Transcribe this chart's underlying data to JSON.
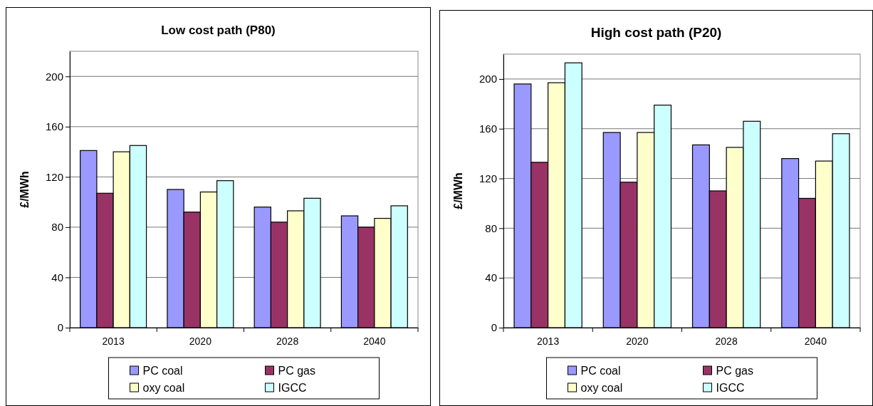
{
  "chart_data": [
    {
      "type": "bar",
      "title": "Low cost path (P80)",
      "ylabel": "£/MWh",
      "categories": [
        "2013",
        "2020",
        "2028",
        "2040"
      ],
      "ylim": [
        0,
        220
      ],
      "yticks": [
        0,
        40,
        80,
        120,
        160,
        200
      ],
      "grid": "y",
      "legend": "bottom",
      "series": [
        {
          "name": "PC coal",
          "color": "#9999ff",
          "values": [
            141,
            110,
            96,
            89
          ]
        },
        {
          "name": "PC gas",
          "color": "#993366",
          "values": [
            107,
            92,
            84,
            80
          ]
        },
        {
          "name": "oxy coal",
          "color": "#ffffcc",
          "values": [
            140,
            108,
            93,
            87
          ]
        },
        {
          "name": "IGCC",
          "color": "#ccffff",
          "values": [
            145,
            117,
            103,
            97
          ]
        }
      ]
    },
    {
      "type": "bar",
      "title": "High cost path (P20)",
      "ylabel": "£/MWh",
      "categories": [
        "2013",
        "2020",
        "2028",
        "2040"
      ],
      "ylim": [
        0,
        220
      ],
      "yticks": [
        0,
        40,
        80,
        120,
        160,
        200
      ],
      "grid": "y",
      "legend": "bottom",
      "series": [
        {
          "name": "PC coal",
          "color": "#9999ff",
          "values": [
            196,
            157,
            147,
            136
          ]
        },
        {
          "name": "PC gas",
          "color": "#993366",
          "values": [
            133,
            117,
            110,
            104
          ]
        },
        {
          "name": "oxy coal",
          "color": "#ffffcc",
          "values": [
            197,
            157,
            145,
            134
          ]
        },
        {
          "name": "IGCC",
          "color": "#ccffff",
          "values": [
            213,
            179,
            166,
            156
          ]
        }
      ]
    }
  ]
}
